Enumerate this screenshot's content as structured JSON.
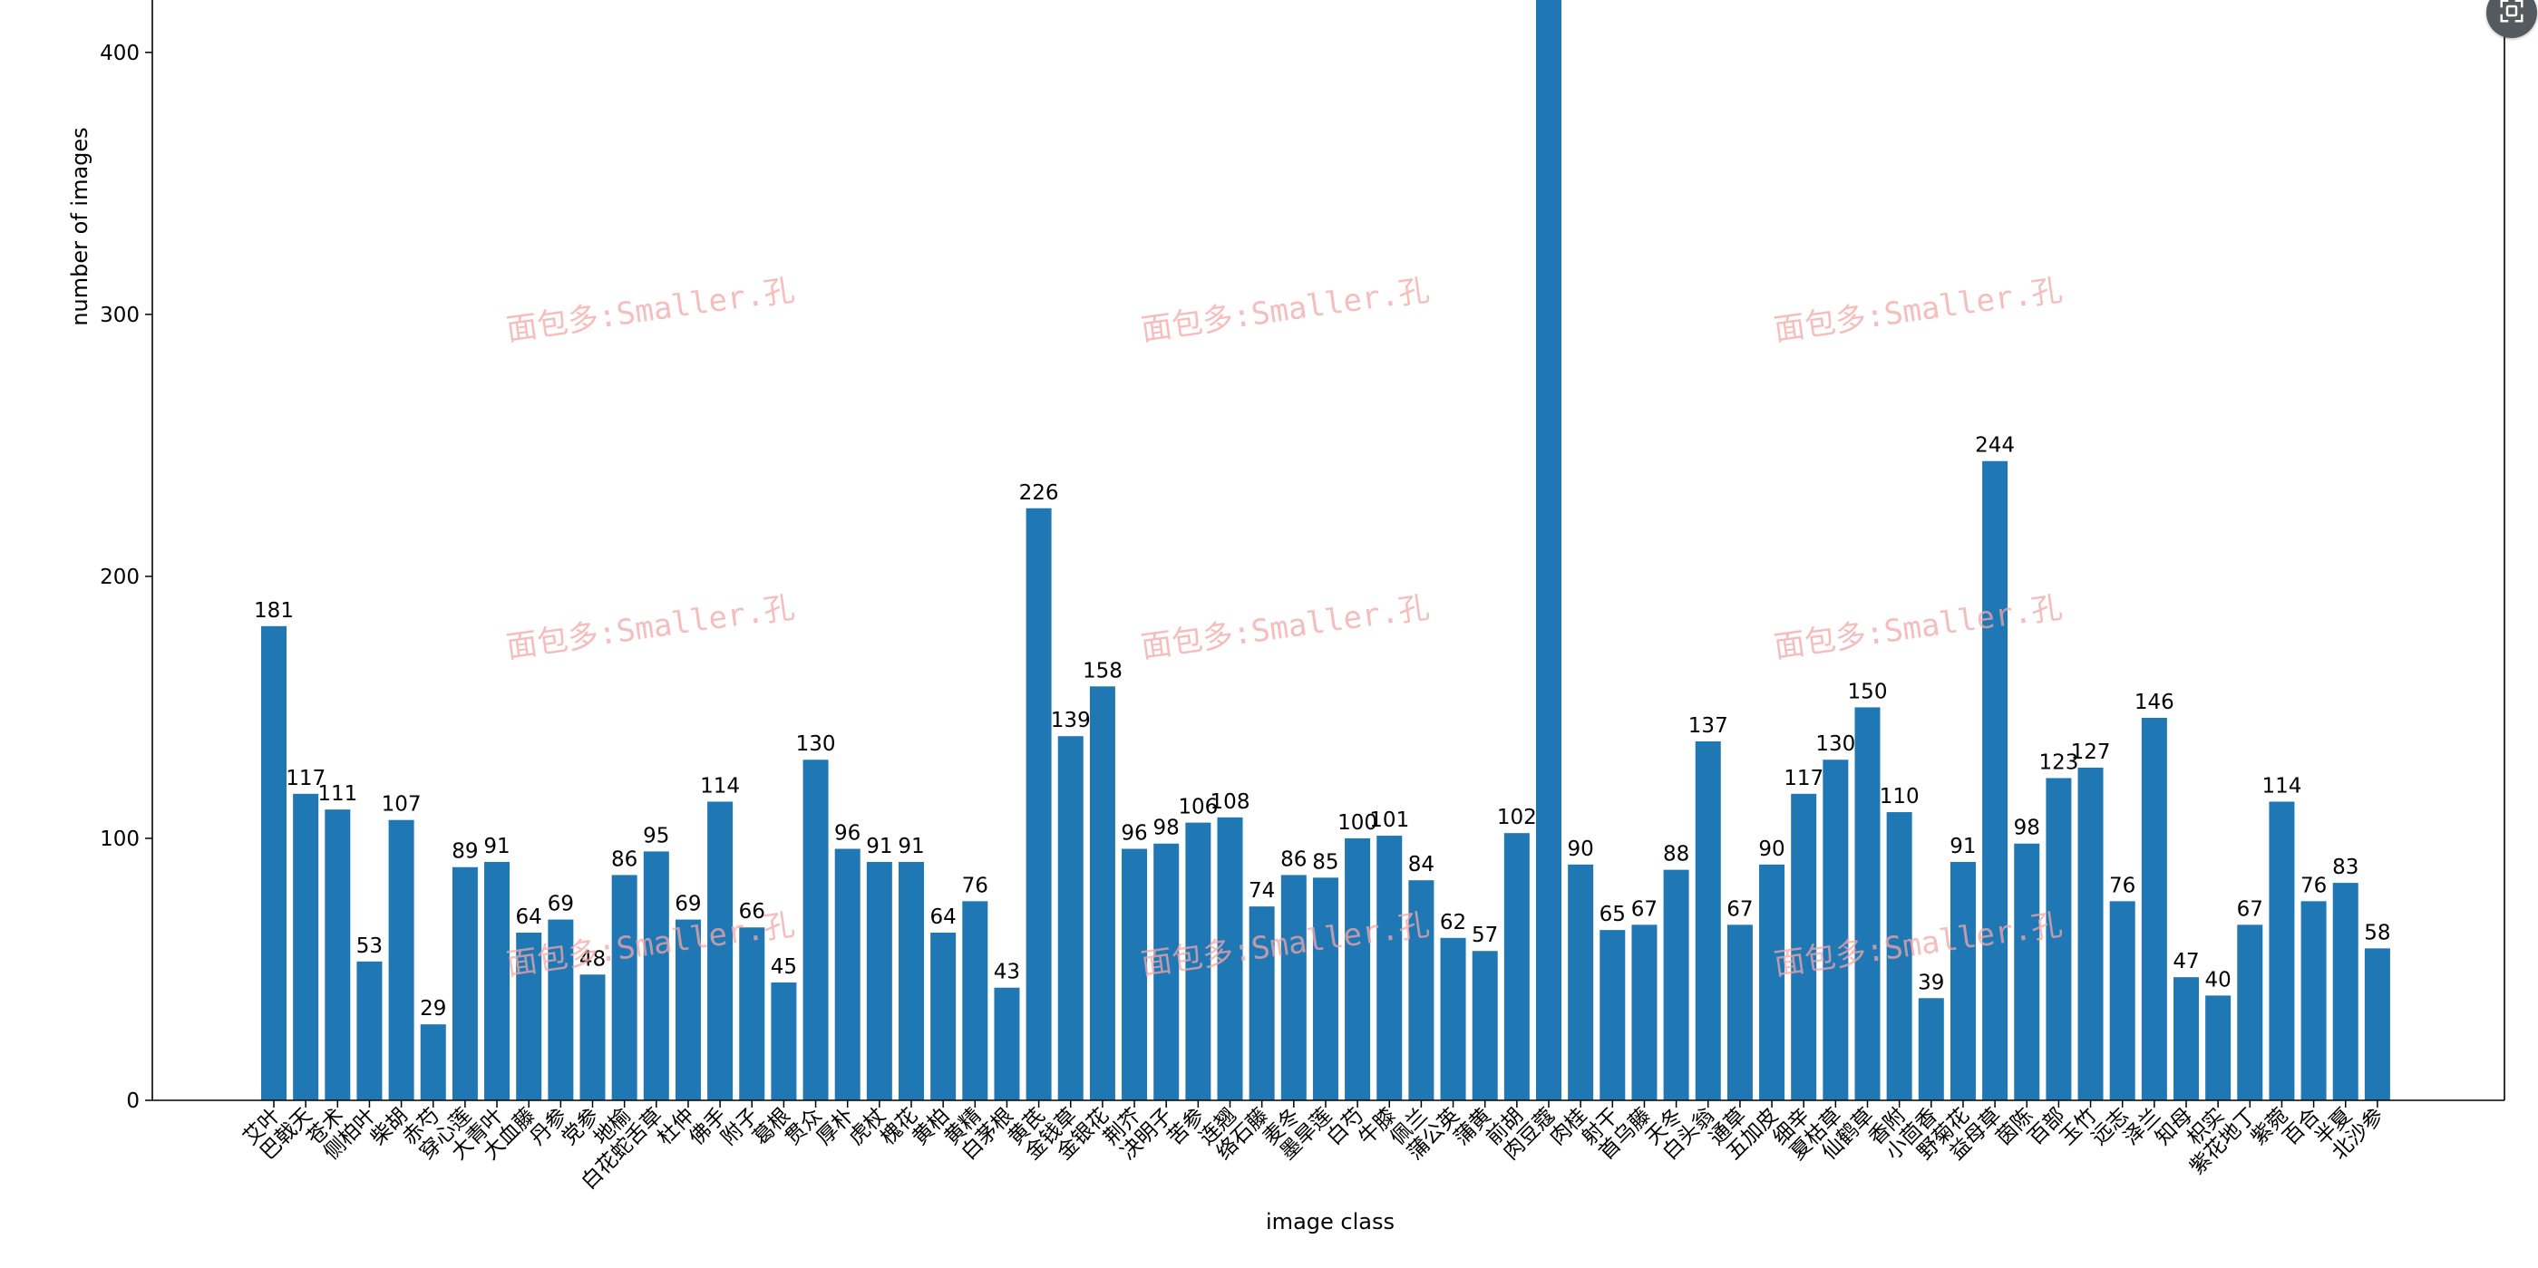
{
  "chart_data": {
    "type": "bar",
    "xlabel": "image class",
    "ylabel": "number of images",
    "ylim": [
      0,
      420
    ],
    "yticks": [
      0,
      100,
      200,
      300,
      400
    ],
    "grid": false,
    "bar_color": "#1f77b4",
    "categories": [
      "艾叶",
      "巴戟天",
      "苍术",
      "侧柏叶",
      "柴胡",
      "赤芍",
      "穿心莲",
      "大青叶",
      "大血藤",
      "丹参",
      "党参",
      "地榆",
      "白花蛇舌草",
      "杜仲",
      "佛手",
      "附子",
      "葛根",
      "贯众",
      "厚朴",
      "虎杖",
      "槐花",
      "黄柏",
      "黄精",
      "白茅根",
      "黄芪",
      "金钱草",
      "金银花",
      "荆芥",
      "决明子",
      "苦参",
      "连翘",
      "络石藤",
      "麦冬",
      "墨旱莲",
      "白芍",
      "牛膝",
      "佩兰",
      "蒲公英",
      "蒲黄",
      "前胡",
      "肉豆蔻",
      "肉桂",
      "射干",
      "首乌藤",
      "天冬",
      "白头翁",
      "通草",
      "五加皮",
      "细辛",
      "夏枯草",
      "仙鹤草",
      "香附",
      "小茴香",
      "野菊花",
      "益母草",
      "茵陈",
      "百部",
      "玉竹",
      "远志",
      "泽兰",
      "知母",
      "枳实",
      "紫花地丁",
      "紫菀",
      "百合",
      "半夏",
      "北沙参"
    ],
    "values": [
      181,
      117,
      111,
      53,
      107,
      29,
      89,
      91,
      64,
      69,
      48,
      86,
      95,
      69,
      114,
      66,
      45,
      130,
      96,
      91,
      91,
      64,
      76,
      43,
      226,
      139,
      158,
      96,
      98,
      106,
      108,
      74,
      86,
      85,
      100,
      101,
      84,
      62,
      57,
      102,
      420,
      90,
      65,
      67,
      88,
      137,
      67,
      90,
      117,
      130,
      150,
      110,
      39,
      91,
      244,
      98,
      123,
      127,
      76,
      146,
      47,
      40,
      67,
      114,
      76,
      83,
      58
    ],
    "value_labels": [
      "181",
      "117",
      "111",
      "53",
      "107",
      "29",
      "89",
      "91",
      "64",
      "69",
      "48",
      "86",
      "95",
      "69",
      "114",
      "66",
      "45",
      "130",
      "96",
      "91",
      "91",
      "64",
      "76",
      "43",
      "226",
      "139",
      "158",
      "96",
      "98",
      "106",
      "108",
      "74",
      "86",
      "85",
      "100",
      "101",
      "84",
      "62",
      "57",
      "102",
      "",
      "90",
      "65",
      "67",
      "88",
      "137",
      "67",
      "90",
      "117",
      "130",
      "150",
      "110",
      "39",
      "91",
      "244",
      "98",
      "123",
      "127",
      "76",
      "146",
      "47",
      "40",
      "67",
      "114",
      "76",
      "83",
      "58"
    ]
  },
  "watermark": {
    "text": "面包多:Smaller.孔",
    "color": "#f4a8a8"
  },
  "toolbar": {
    "icon": "fullscreen-icon"
  }
}
